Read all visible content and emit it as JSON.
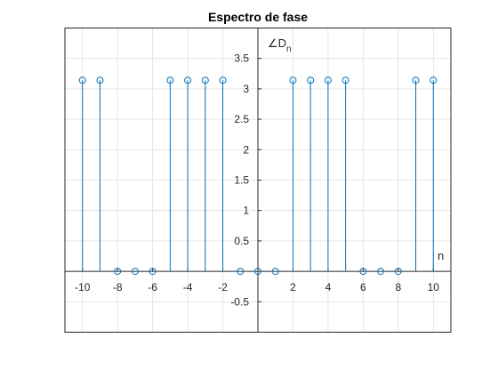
{
  "chart_data": {
    "type": "stem",
    "title": "Espectro de fase",
    "xlabel": "n",
    "ylabel_symbol": "∠D",
    "ylabel_subscript": "n",
    "xlim": [
      -11,
      11
    ],
    "ylim": [
      -1,
      4
    ],
    "grid": true,
    "axis_location": "origin",
    "series_color": "#0072BD",
    "x_ticks": [
      -10,
      -8,
      -6,
      -4,
      -2,
      2,
      4,
      6,
      8,
      10
    ],
    "x_tick_labels": [
      "-10",
      "-8",
      "-6",
      "-4",
      "-2",
      "2",
      "4",
      "6",
      "8",
      "10"
    ],
    "y_ticks": [
      -0.5,
      0.5,
      1,
      1.5,
      2,
      2.5,
      3,
      3.5
    ],
    "y_tick_labels": [
      "-0.5",
      "0.5",
      "1",
      "1.5",
      "2",
      "2.5",
      "3",
      "3.5"
    ],
    "x": [
      -10,
      -9,
      -8,
      -7,
      -6,
      -5,
      -4,
      -3,
      -2,
      -1,
      0,
      1,
      2,
      3,
      4,
      5,
      6,
      7,
      8,
      9,
      10
    ],
    "y": [
      3.1416,
      3.1416,
      0,
      0,
      0,
      3.1416,
      3.1416,
      3.1416,
      3.1416,
      0,
      0,
      0,
      3.1416,
      3.1416,
      3.1416,
      3.1416,
      0,
      0,
      0,
      3.1416,
      3.1416
    ]
  }
}
